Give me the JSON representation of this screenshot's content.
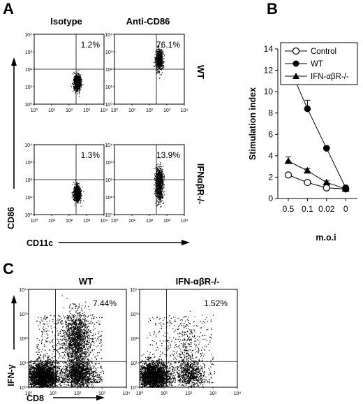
{
  "panels": {
    "a": "A",
    "b": "B",
    "c": "C"
  },
  "colors": {
    "ink": "#000000",
    "background": "#ffffff"
  },
  "chart_data": [
    {
      "type": "scatter",
      "panel": "A",
      "col_headers": [
        "Isotype",
        "Anti-CD86"
      ],
      "row_labels": [
        "WT",
        "IFNαβR-/-"
      ],
      "xlabel": "CD11c",
      "ylabel": "CD86",
      "xlim": [
        1,
        10000
      ],
      "ylim": [
        1,
        10000
      ],
      "scale": "log",
      "ticks": [
        "10⁰",
        "10¹",
        "10²",
        "10³",
        "10⁴"
      ],
      "percentages": [
        [
          "1.2%",
          "76.1%"
        ],
        [
          "1.3%",
          "13.9%"
        ]
      ]
    },
    {
      "type": "line",
      "panel": "B",
      "categories": [
        "0.5",
        "0.1",
        "0.02",
        "0"
      ],
      "xlabel": "m.o.i",
      "ylabel": "Stimulation index",
      "ylim": [
        0,
        14
      ],
      "yticks": [
        0,
        2,
        4,
        6,
        8,
        10,
        12,
        14
      ],
      "legend_position": "top-right",
      "series": [
        {
          "name": "Control",
          "values": [
            2.2,
            1.5,
            1.0,
            0.9
          ],
          "errors": [
            0.2,
            0.15,
            0.1,
            0.1
          ]
        },
        {
          "name": "WT",
          "values": [
            12.5,
            8.4,
            4.7,
            1.0
          ],
          "errors": [
            0.7,
            0.8,
            0.2,
            0.1
          ]
        },
        {
          "name": "IFN-αβR-/-",
          "values": [
            3.5,
            2.6,
            1.5,
            0.9
          ],
          "errors": [
            0.4,
            0.2,
            0.15,
            0.1
          ]
        }
      ]
    },
    {
      "type": "scatter",
      "panel": "C",
      "titles": [
        "WT",
        "IFN-αβR-/-"
      ],
      "xlabel": "CD8",
      "ylabel": "IFN-γ",
      "xlim": [
        1,
        10000
      ],
      "ylim": [
        1,
        10000
      ],
      "scale": "log",
      "ticks": [
        "10⁰",
        "10¹",
        "10²",
        "10³",
        "10⁴"
      ],
      "percentages": [
        "7.44%",
        "1.52%"
      ]
    }
  ]
}
